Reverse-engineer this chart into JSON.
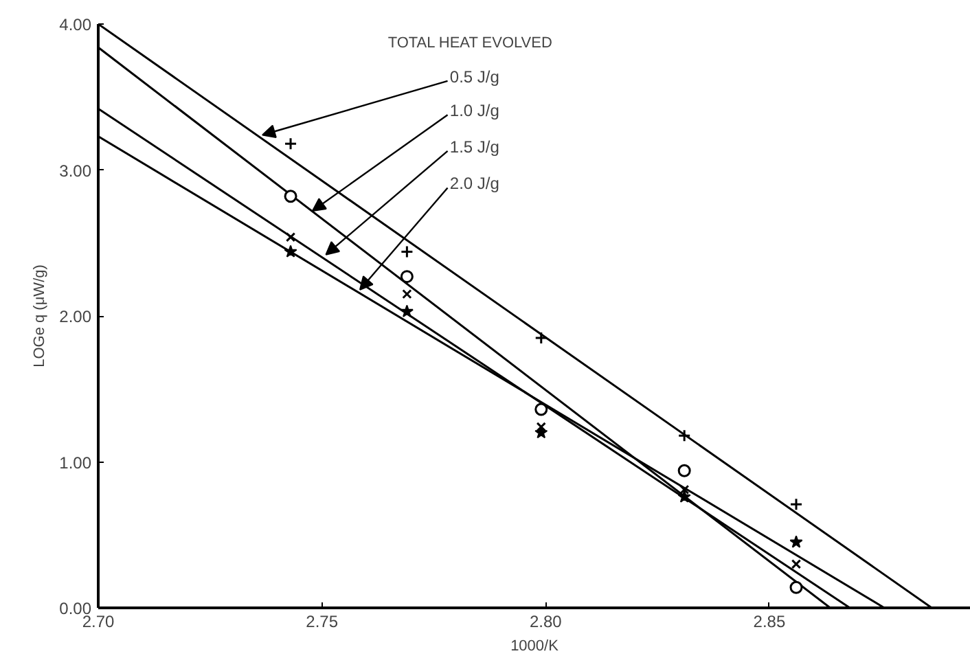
{
  "chart_data": {
    "type": "scatter",
    "xlabel": "1000/K",
    "ylabel": "LOGe q (μW/g)",
    "xlim": [
      2.7,
      2.895
    ],
    "ylim": [
      0,
      4
    ],
    "xticks": [
      {
        "value": 2.7,
        "label": "2.70"
      },
      {
        "value": 2.75,
        "label": "2.75"
      },
      {
        "value": 2.8,
        "label": "2.80"
      },
      {
        "value": 2.85,
        "label": "2.85"
      }
    ],
    "yticks": [
      {
        "value": 0,
        "label": "0.00"
      },
      {
        "value": 1,
        "label": "1.00"
      },
      {
        "value": 2,
        "label": "2.00"
      },
      {
        "value": 3,
        "label": "3.00"
      },
      {
        "value": 4,
        "label": "4.00"
      }
    ],
    "grid": false,
    "annotations": [
      "TOTAL HEAT EVOLVED",
      {
        "text": "0.5 J/g",
        "x": 2.7367,
        "y": 3.24
      },
      {
        "text": "1.0 J/g",
        "x": 2.7479,
        "y": 2.72
      },
      {
        "text": "1.5 J/g",
        "x": 2.7509,
        "y": 2.42
      },
      {
        "text": "2.0 J/g",
        "x": 2.7585,
        "y": 2.18
      }
    ],
    "series": [
      {
        "type": "line",
        "color": "#000000",
        "line_style": "solid",
        "x": [
          2.7,
          2.8863
        ],
        "values": [
          4.0,
          0
        ]
      },
      {
        "type": "line",
        "color": "#000000",
        "line_style": "solid",
        "x": [
          2.7,
          2.8636
        ],
        "values": [
          3.84,
          0
        ]
      },
      {
        "type": "line",
        "color": "#000000",
        "line_style": "solid",
        "x": [
          2.7,
          2.868
        ],
        "values": [
          3.42,
          0
        ]
      },
      {
        "type": "line",
        "color": "#000000",
        "line_style": "solid",
        "x": [
          2.7,
          2.8757
        ],
        "values": [
          3.23,
          0
        ]
      },
      {
        "color": "#000000",
        "marker": "cross",
        "x": [
          2.743,
          2.769,
          2.799,
          2.831,
          2.856
        ],
        "values": [
          3.18,
          2.44,
          1.85,
          1.18,
          0.71
        ]
      },
      {
        "color": "#000000",
        "marker": "circle",
        "x": [
          2.743,
          2.769,
          2.799,
          2.831,
          2.856
        ],
        "values": [
          2.82,
          2.27,
          1.36,
          0.94,
          0.14
        ]
      },
      {
        "color": "#000000",
        "marker": "x",
        "x": [
          2.743,
          2.769,
          2.799,
          2.831,
          2.856
        ],
        "values": [
          2.54,
          2.15,
          1.24,
          0.81,
          0.3
        ]
      },
      {
        "color": "#000000",
        "marker": "star",
        "x": [
          2.743,
          2.769,
          2.799,
          2.831,
          2.856
        ],
        "values": [
          2.44,
          2.03,
          1.2,
          0.76,
          0.45
        ]
      }
    ]
  }
}
